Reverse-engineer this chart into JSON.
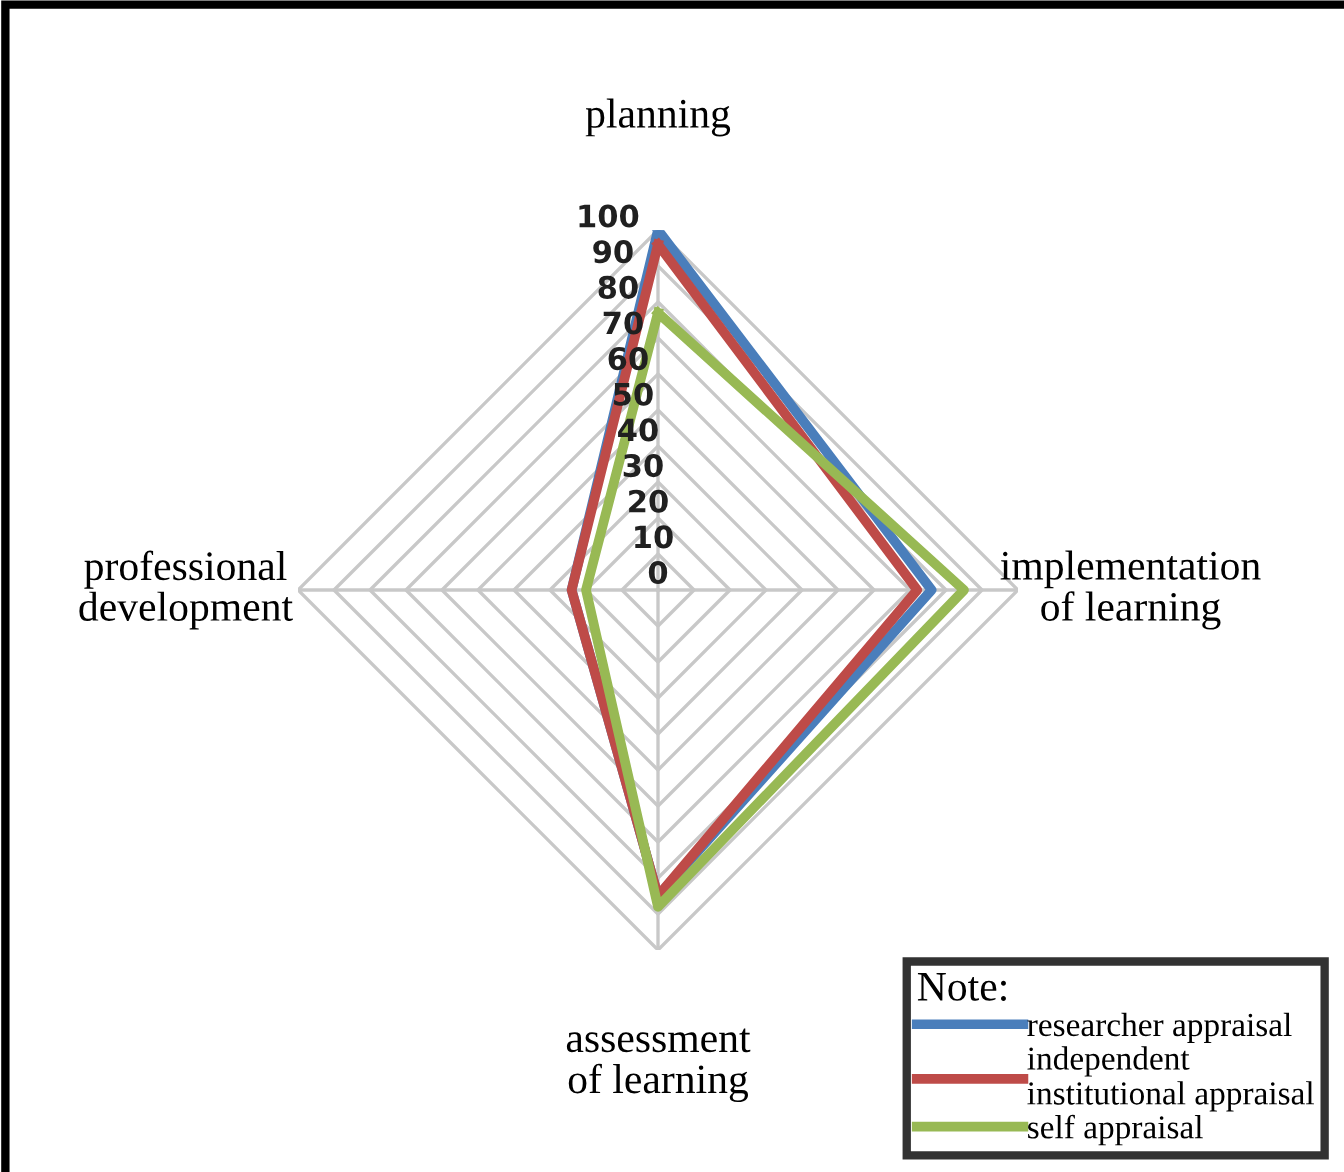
{
  "chart_data": {
    "type": "radar",
    "categories": [
      "planning",
      "implementation\nof learning",
      "assessment\nof learning",
      "professional\ndevelopment"
    ],
    "series": [
      {
        "name": "researcher appraisal",
        "color": "#4a7ebb",
        "values": [
          100,
          76,
          85,
          24
        ]
      },
      {
        "name": "independent\ninstitutional appraisal",
        "color": "#be4b48",
        "values": [
          96,
          72,
          85,
          24
        ]
      },
      {
        "name": "self appraisal",
        "color": "#98b954",
        "values": [
          77,
          85,
          88,
          20
        ]
      }
    ],
    "ylim": [
      0,
      100
    ],
    "yticks": [
      0,
      10,
      20,
      30,
      40,
      50,
      60,
      70,
      80,
      90,
      100
    ],
    "grid": true,
    "legend": "bottom right",
    "legend_title": "Note:",
    "marker": "none",
    "line_style": "solid"
  }
}
